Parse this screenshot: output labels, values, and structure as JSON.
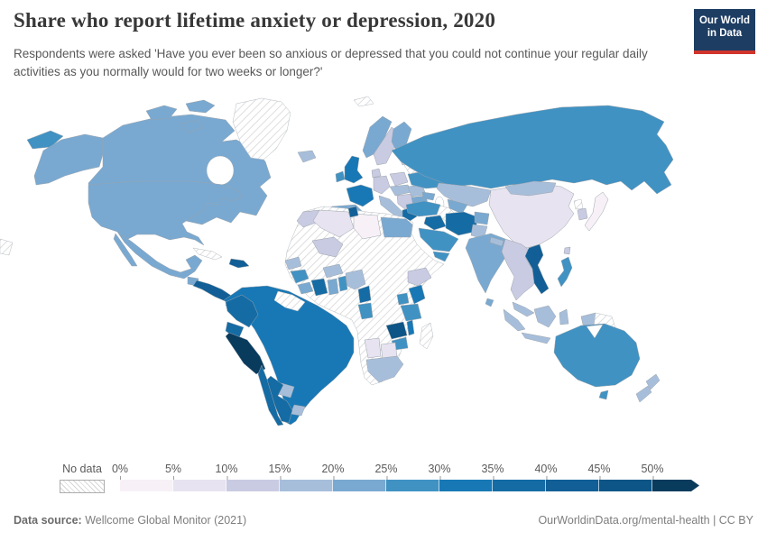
{
  "header": {
    "title": "Share who report lifetime anxiety or depression, 2020",
    "subtitle": "Respondents were asked 'Have you ever been so anxious or depressed that you could not continue your regular daily activities as you normally would for two weeks or longer?'"
  },
  "logo": {
    "line1": "Our World",
    "line2": "in Data",
    "bg": "#1d3d63",
    "accent": "#d0342c"
  },
  "palette": {
    "b0": "#f7f1f7",
    "b1": "#e7e3f0",
    "b2": "#c9cbe2",
    "b3": "#a7bedb",
    "b4": "#79a9d1",
    "b5": "#4092c3",
    "b6": "#1878b5",
    "b7": "#156ba4",
    "b8": "#115f96",
    "b9": "#0d5586",
    "b10": "#093b5d",
    "stroke": "#9aa3ab",
    "hatch_line": "#d6d6d6"
  },
  "legend": {
    "no_data_label": "No data",
    "ticks": [
      "0%",
      "5%",
      "10%",
      "15%",
      "20%",
      "25%",
      "30%",
      "35%",
      "40%",
      "45%",
      "50%"
    ]
  },
  "footer": {
    "source_label": "Data source:",
    "source_value": " Wellcome Global Monitor (2021)",
    "right_text": "OurWorldinData.org/mental-health | CC BY"
  },
  "chart_data": {
    "type": "choropleth_map",
    "title": "Share who report lifetime anxiety or depression, 2020",
    "subtitle": "Respondents were asked 'Have you ever been so anxious or depressed that you could not continue your regular daily activities as you normally would for two weeks or longer?'",
    "year": 2020,
    "unit": "% of respondents",
    "source": "Wellcome Global Monitor (2021)",
    "legend_position": "bottom",
    "legend_bins": [
      {
        "range": "0-5%",
        "color": "#f7f1f7"
      },
      {
        "range": "5-10%",
        "color": "#e7e3f0"
      },
      {
        "range": "10-15%",
        "color": "#c9cbe2"
      },
      {
        "range": "15-20%",
        "color": "#a7bedb"
      },
      {
        "range": "20-25%",
        "color": "#79a9d1"
      },
      {
        "range": "25-30%",
        "color": "#4092c3"
      },
      {
        "range": "30-35%",
        "color": "#1878b5"
      },
      {
        "range": "35-40%",
        "color": "#156ba4"
      },
      {
        "range": "40-45%",
        "color": "#115f96"
      },
      {
        "range": "45-50%",
        "color": "#0d5586"
      },
      {
        "range": "50%+",
        "color": "#093b5d"
      },
      {
        "range": "No data",
        "color": "hatched"
      }
    ],
    "regions": [
      {
        "name": "United States",
        "bin": "20-25%"
      },
      {
        "name": "Canada",
        "bin": "20-25%"
      },
      {
        "name": "Mexico",
        "bin": "20-25%"
      },
      {
        "name": "Greenland",
        "bin": "No data"
      },
      {
        "name": "Guatemala",
        "bin": "20-25%"
      },
      {
        "name": "Nicaragua",
        "bin": "40-45%"
      },
      {
        "name": "Costa Rica",
        "bin": "40-45%"
      },
      {
        "name": "Panama",
        "bin": "30-35%"
      },
      {
        "name": "Cuba",
        "bin": "No data"
      },
      {
        "name": "Dominican Republic",
        "bin": "40-45%"
      },
      {
        "name": "Colombia",
        "bin": "35-40%"
      },
      {
        "name": "Venezuela",
        "bin": "30-35%"
      },
      {
        "name": "Guyana",
        "bin": "No data"
      },
      {
        "name": "Suriname",
        "bin": "No data"
      },
      {
        "name": "Ecuador",
        "bin": "35-40%"
      },
      {
        "name": "Peru",
        "bin": "50%+"
      },
      {
        "name": "Bolivia",
        "bin": "30-35%"
      },
      {
        "name": "Brazil",
        "bin": "30-35%"
      },
      {
        "name": "Paraguay",
        "bin": "15-20%"
      },
      {
        "name": "Uruguay",
        "bin": "15-20%"
      },
      {
        "name": "Argentina",
        "bin": "35-40%"
      },
      {
        "name": "Chile",
        "bin": "35-40%"
      },
      {
        "name": "Iceland",
        "bin": "15-20%"
      },
      {
        "name": "United Kingdom",
        "bin": "30-35%"
      },
      {
        "name": "Ireland",
        "bin": "25-30%"
      },
      {
        "name": "Norway",
        "bin": "20-25%"
      },
      {
        "name": "Sweden",
        "bin": "10-15%"
      },
      {
        "name": "Finland",
        "bin": "20-25%"
      },
      {
        "name": "Denmark",
        "bin": "10-15%"
      },
      {
        "name": "Germany",
        "bin": "10-15%"
      },
      {
        "name": "France",
        "bin": "30-35%"
      },
      {
        "name": "Spain",
        "bin": "20-25%"
      },
      {
        "name": "Portugal",
        "bin": "25-30%"
      },
      {
        "name": "Italy",
        "bin": "15-20%"
      },
      {
        "name": "Poland",
        "bin": "10-15%"
      },
      {
        "name": "Czechia",
        "bin": "15-20%"
      },
      {
        "name": "Balkans",
        "bin": "10-15%"
      },
      {
        "name": "Greece",
        "bin": "35-40%"
      },
      {
        "name": "Romania",
        "bin": "15-20%"
      },
      {
        "name": "Bulgaria",
        "bin": "20-25%"
      },
      {
        "name": "Ukraine",
        "bin": "25-30%"
      },
      {
        "name": "Belarus",
        "bin": "No data"
      },
      {
        "name": "Baltic states",
        "bin": "10-15%"
      },
      {
        "name": "Turkey",
        "bin": "25-30%"
      },
      {
        "name": "Russia",
        "bin": "25-30%"
      },
      {
        "name": "Kazakhstan",
        "bin": "15-20%"
      },
      {
        "name": "Turkmenistan",
        "bin": "No data"
      },
      {
        "name": "Uzbekistan",
        "bin": "20-25%"
      },
      {
        "name": "Afghanistan",
        "bin": "20-25%"
      },
      {
        "name": "Pakistan",
        "bin": "15-20%"
      },
      {
        "name": "India",
        "bin": "20-25%"
      },
      {
        "name": "Nepal",
        "bin": "15-20%"
      },
      {
        "name": "Sri Lanka",
        "bin": "20-25%"
      },
      {
        "name": "Bangladesh",
        "bin": "15-20%"
      },
      {
        "name": "China",
        "bin": "5-10%"
      },
      {
        "name": "Mongolia",
        "bin": "15-20%"
      },
      {
        "name": "Japan",
        "bin": "0-5%"
      },
      {
        "name": "South Korea",
        "bin": "10-15%"
      },
      {
        "name": "North Korea",
        "bin": "No data"
      },
      {
        "name": "Vietnam",
        "bin": "40-45%"
      },
      {
        "name": "Thailand",
        "bin": "10-15%"
      },
      {
        "name": "Myanmar",
        "bin": "10-15%"
      },
      {
        "name": "Cambodia",
        "bin": "10-15%"
      },
      {
        "name": "Malaysia",
        "bin": "15-20%"
      },
      {
        "name": "Indonesia",
        "bin": "15-20%"
      },
      {
        "name": "Philippines",
        "bin": "25-30%"
      },
      {
        "name": "Papua New Guinea",
        "bin": "No data"
      },
      {
        "name": "Australia",
        "bin": "25-30%"
      },
      {
        "name": "New Zealand",
        "bin": "15-20%"
      },
      {
        "name": "Iran",
        "bin": "35-40%"
      },
      {
        "name": "Iraq",
        "bin": "35-40%"
      },
      {
        "name": "Saudi Arabia",
        "bin": "25-30%"
      },
      {
        "name": "Yemen",
        "bin": "25-30%"
      },
      {
        "name": "Egypt",
        "bin": "20-25%"
      },
      {
        "name": "Libya",
        "bin": "0-5%"
      },
      {
        "name": "Tunisia",
        "bin": "40-45%"
      },
      {
        "name": "Algeria",
        "bin": "5-10%"
      },
      {
        "name": "Morocco",
        "bin": "10-15%"
      },
      {
        "name": "Mauritania",
        "bin": "No data"
      },
      {
        "name": "Senegal",
        "bin": "15-20%"
      },
      {
        "name": "Mali",
        "bin": "10-15%"
      },
      {
        "name": "Guinea",
        "bin": "25-30%"
      },
      {
        "name": "Liberia",
        "bin": "20-25%"
      },
      {
        "name": "Ivory Coast",
        "bin": "35-40%"
      },
      {
        "name": "Ghana",
        "bin": "20-25%"
      },
      {
        "name": "Burkina Faso",
        "bin": "15-20%"
      },
      {
        "name": "Benin",
        "bin": "25-30%"
      },
      {
        "name": "Niger",
        "bin": "No data"
      },
      {
        "name": "Nigeria",
        "bin": "15-20%"
      },
      {
        "name": "Chad",
        "bin": "No data"
      },
      {
        "name": "Sudan",
        "bin": "No data"
      },
      {
        "name": "Cameroon",
        "bin": "35-40%"
      },
      {
        "name": "Gabon",
        "bin": "25-30%"
      },
      {
        "name": "DR Congo",
        "bin": "No data"
      },
      {
        "name": "Ethiopia",
        "bin": "10-15%"
      },
      {
        "name": "Somalia",
        "bin": "No data"
      },
      {
        "name": "Uganda",
        "bin": "25-30%"
      },
      {
        "name": "Kenya",
        "bin": "30-35%"
      },
      {
        "name": "Tanzania",
        "bin": "25-30%"
      },
      {
        "name": "Zambia",
        "bin": "45-50%"
      },
      {
        "name": "Malawi",
        "bin": "30-35%"
      },
      {
        "name": "Zimbabwe",
        "bin": "25-30%"
      },
      {
        "name": "Mozambique",
        "bin": "No data"
      },
      {
        "name": "Madagascar",
        "bin": "No data"
      },
      {
        "name": "Angola",
        "bin": "No data"
      },
      {
        "name": "Namibia",
        "bin": "5-10%"
      },
      {
        "name": "Botswana",
        "bin": "5-10%"
      },
      {
        "name": "South Africa",
        "bin": "15-20%"
      }
    ]
  }
}
